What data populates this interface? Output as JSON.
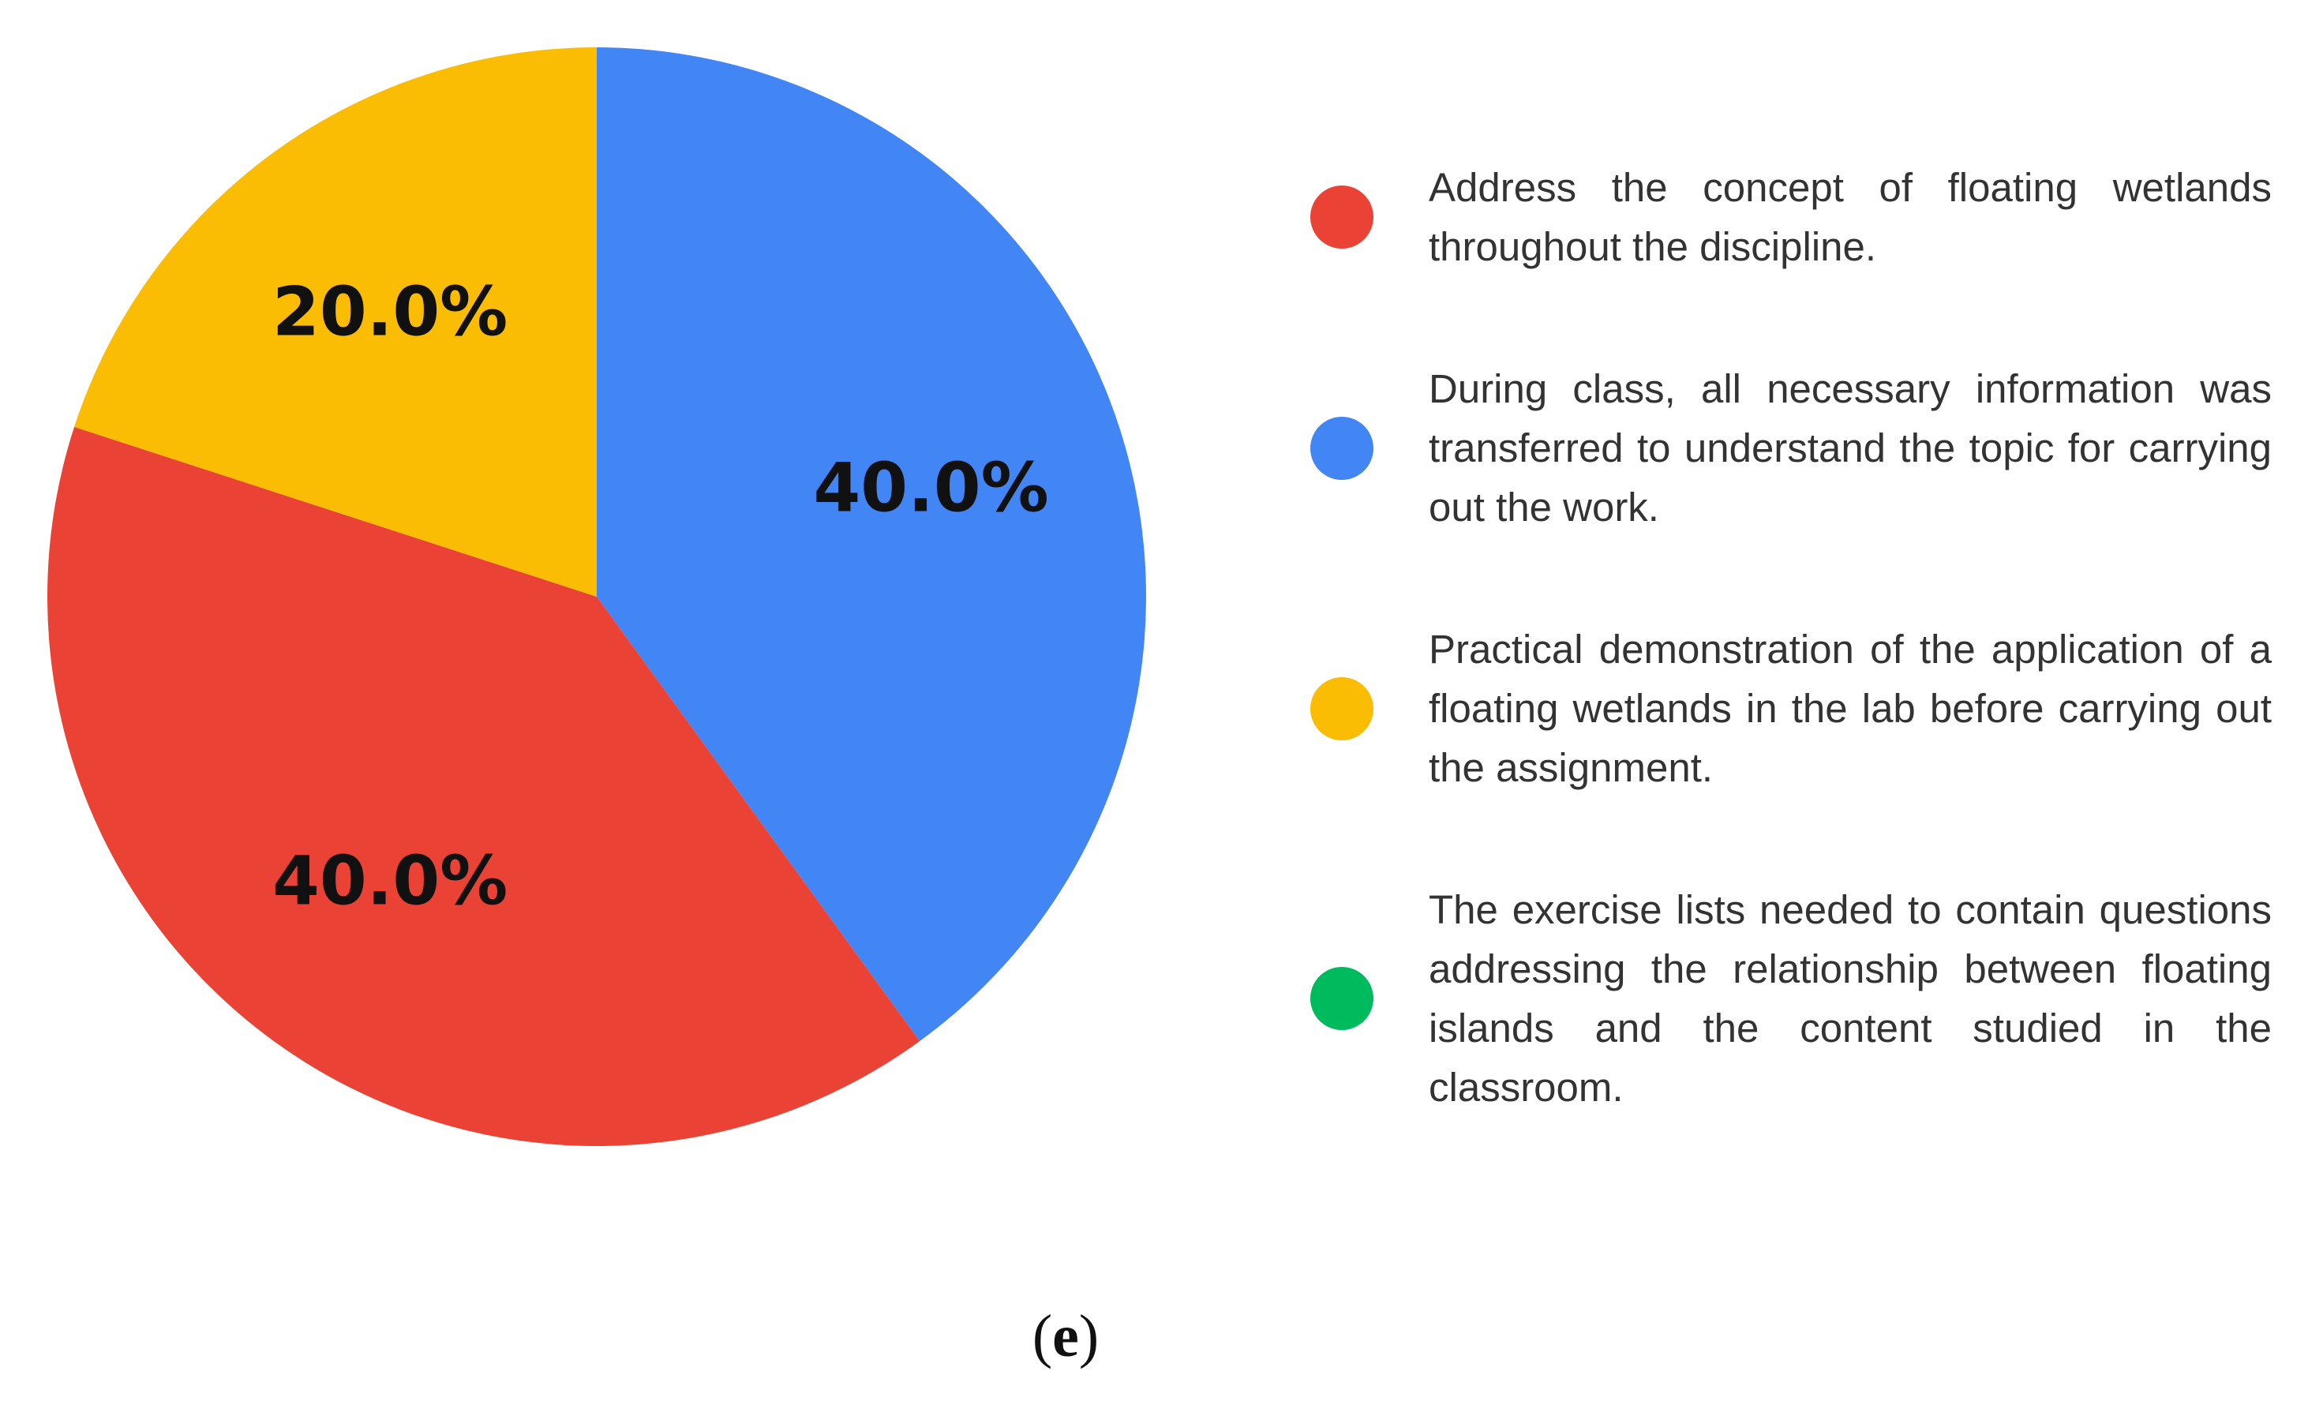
{
  "chart_data": {
    "type": "pie",
    "slices": [
      {
        "label": "Address the concept of floating wetlands throughout the discipline.",
        "value": 40.0,
        "display": "40.0%",
        "color": "#EA4335"
      },
      {
        "label": "During class, all necessary information was transferred to understand the topic for carrying out the work.",
        "value": 40.0,
        "display": "40.0%",
        "color": "#4285F4"
      },
      {
        "label": "Practical demonstration of the application of a floating wetlands in the lab before carrying out the assignment.",
        "value": 20.0,
        "display": "20.0%",
        "color": "#FBBC04"
      },
      {
        "label": "The exercise lists needed to contain questions addressing the relationship between floating islands and the content studied in the classroom.",
        "value": 0.0,
        "display": "",
        "color": "#00BB5E"
      }
    ],
    "legend_position": "right"
  },
  "panel": {
    "open": "(",
    "letter": "e",
    "close": ")"
  }
}
